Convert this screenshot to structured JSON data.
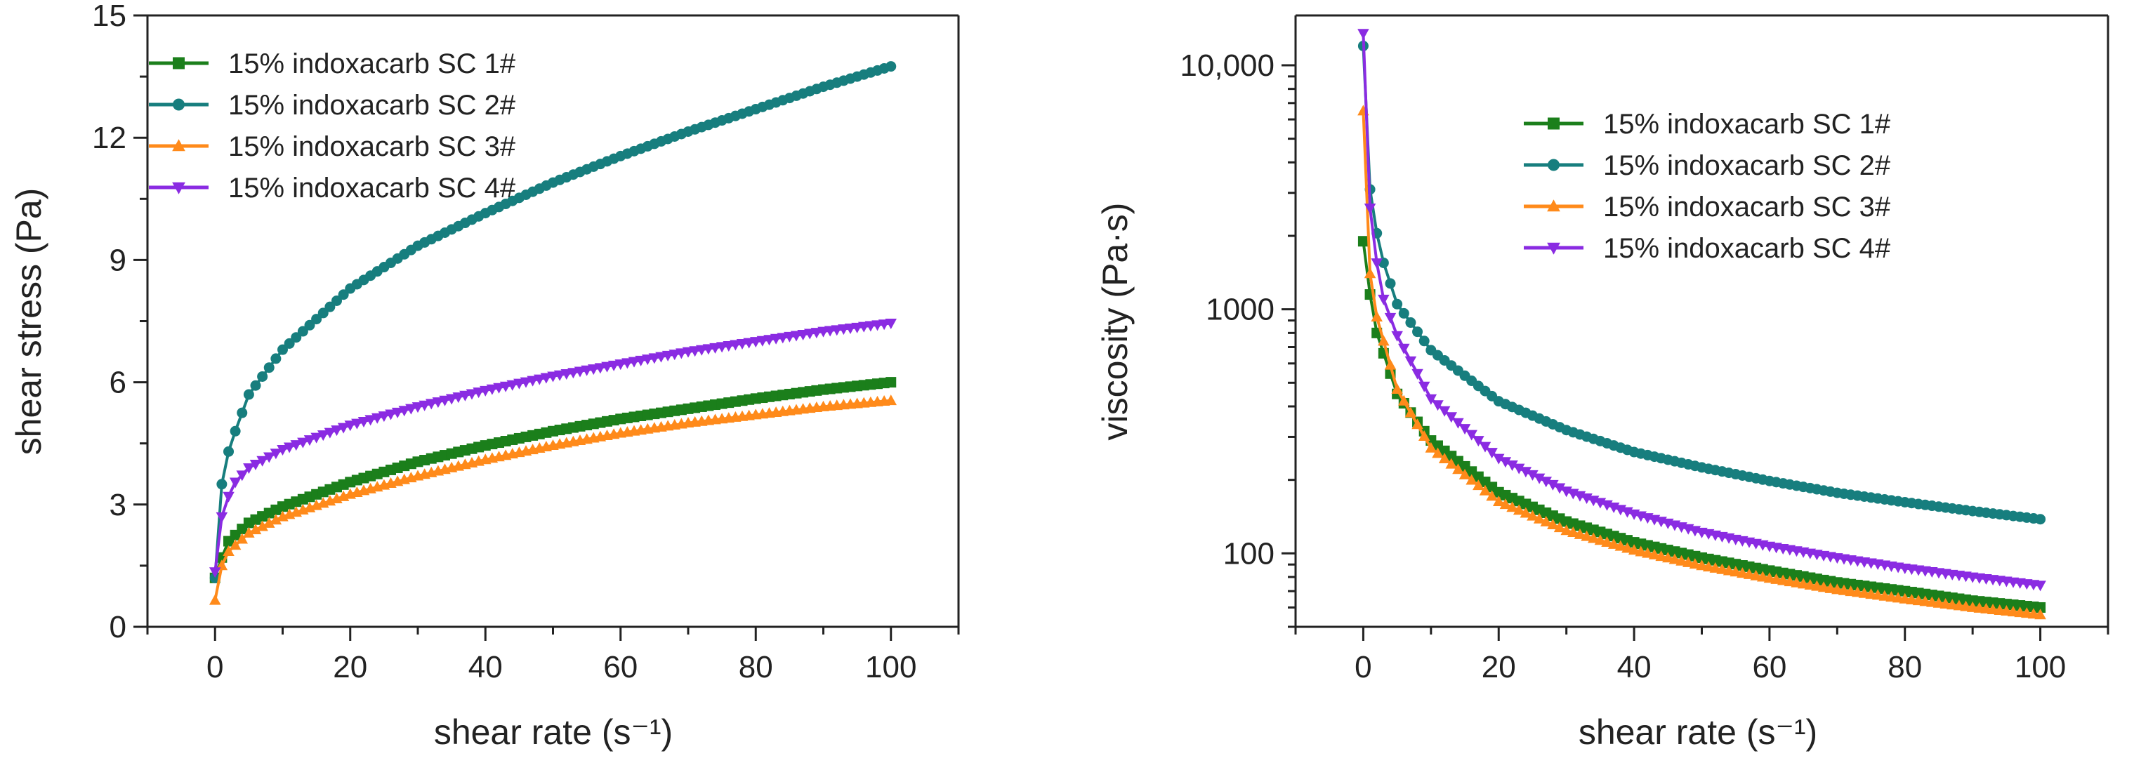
{
  "colors": {
    "sc1": "#1b7f1b",
    "sc2": "#177e7e",
    "sc3": "#ff8a1a",
    "sc4": "#8a2be2",
    "axis": "#222222"
  },
  "chart_data": [
    {
      "type": "line",
      "xlabel": "shear rate (s⁻¹)",
      "ylabel": "shear stress (Pa)",
      "xlim": [
        -10,
        110
      ],
      "ylim": [
        0,
        15
      ],
      "yscale": "linear",
      "xticks": [
        "0",
        "20",
        "40",
        "60",
        "80",
        "100"
      ],
      "xtick_values": [
        0,
        20,
        40,
        60,
        80,
        100
      ],
      "yticks": [
        "0",
        "3",
        "6",
        "9",
        "12",
        "15"
      ],
      "ytick_values": [
        0,
        3,
        6,
        9,
        12,
        15
      ],
      "legend_position": "top-left",
      "series": [
        {
          "name": "15% indoxacarb SC 1#",
          "marker": "square",
          "color": "#1b7f1b",
          "x": [
            0,
            1,
            2,
            5,
            10,
            20,
            30,
            40,
            50,
            60,
            70,
            80,
            90,
            100
          ],
          "y": [
            1.2,
            1.7,
            2.1,
            2.55,
            2.95,
            3.55,
            4.05,
            4.45,
            4.8,
            5.1,
            5.35,
            5.6,
            5.82,
            6.0
          ]
        },
        {
          "name": "15% indoxacarb SC 2#",
          "marker": "circle",
          "color": "#177e7e",
          "x": [
            0,
            1,
            2,
            3,
            5,
            10,
            20,
            30,
            40,
            50,
            60,
            70,
            80,
            90,
            100
          ],
          "y": [
            1.2,
            3.5,
            4.3,
            4.8,
            5.7,
            6.8,
            8.3,
            9.35,
            10.15,
            10.9,
            11.55,
            12.15,
            12.7,
            13.25,
            13.75
          ]
        },
        {
          "name": "15% indoxacarb SC 3#",
          "marker": "triangle-up",
          "color": "#ff8a1a",
          "x": [
            0,
            1,
            2,
            5,
            10,
            20,
            30,
            40,
            50,
            60,
            70,
            80,
            90,
            100
          ],
          "y": [
            0.65,
            1.5,
            1.85,
            2.3,
            2.7,
            3.25,
            3.7,
            4.1,
            4.45,
            4.75,
            5.0,
            5.2,
            5.4,
            5.55
          ]
        },
        {
          "name": "15% indoxacarb SC 4#",
          "marker": "triangle-down",
          "color": "#8a2be2",
          "x": [
            0,
            1,
            2,
            3,
            5,
            10,
            20,
            30,
            40,
            50,
            60,
            70,
            80,
            90,
            100
          ],
          "y": [
            1.35,
            2.7,
            3.2,
            3.55,
            3.9,
            4.35,
            4.95,
            5.4,
            5.8,
            6.15,
            6.45,
            6.75,
            7.0,
            7.25,
            7.45
          ]
        }
      ]
    },
    {
      "type": "line",
      "xlabel": "shear rate (s⁻¹)",
      "ylabel": "viscosity (Pa·s)",
      "xlim": [
        -10,
        110
      ],
      "ylim": [
        50,
        16000
      ],
      "yscale": "log",
      "xticks": [
        "0",
        "20",
        "40",
        "60",
        "80",
        "100"
      ],
      "xtick_values": [
        0,
        20,
        40,
        60,
        80,
        100
      ],
      "yticks": [
        "100",
        "1000",
        "10,000"
      ],
      "ytick_values": [
        100,
        1000,
        10000
      ],
      "legend_position": "top-right",
      "series": [
        {
          "name": "15% indoxacarb SC 1#",
          "marker": "square",
          "color": "#1b7f1b",
          "x": [
            0,
            1,
            2,
            5,
            10,
            20,
            30,
            40,
            50,
            60,
            70,
            80,
            90,
            100
          ],
          "y": [
            1900,
            1150,
            800,
            450,
            290,
            178,
            135,
            111,
            96,
            85,
            76,
            70,
            64,
            60
          ]
        },
        {
          "name": "15% indoxacarb SC 2#",
          "marker": "circle",
          "color": "#177e7e",
          "x": [
            0,
            1,
            2,
            3,
            5,
            10,
            20,
            30,
            40,
            50,
            60,
            70,
            80,
            90,
            100
          ],
          "y": [
            12000,
            3100,
            2050,
            1550,
            1050,
            680,
            420,
            320,
            260,
            225,
            198,
            177,
            162,
            149,
            138
          ]
        },
        {
          "name": "15% indoxacarb SC 3#",
          "marker": "triangle-up",
          "color": "#ff8a1a",
          "x": [
            0,
            1,
            2,
            5,
            10,
            20,
            30,
            40,
            50,
            60,
            70,
            80,
            90,
            100
          ],
          "y": [
            6500,
            1400,
            930,
            470,
            270,
            163,
            124,
            103,
            89,
            79,
            71,
            65,
            60,
            56
          ]
        },
        {
          "name": "15% indoxacarb SC 4#",
          "marker": "triangle-down",
          "color": "#8a2be2",
          "x": [
            0,
            1,
            2,
            3,
            5,
            10,
            20,
            30,
            40,
            50,
            60,
            70,
            80,
            90,
            100
          ],
          "y": [
            13500,
            2600,
            1550,
            1100,
            780,
            430,
            245,
            180,
            145,
            122,
            107,
            96,
            87,
            80,
            74
          ]
        }
      ]
    }
  ]
}
